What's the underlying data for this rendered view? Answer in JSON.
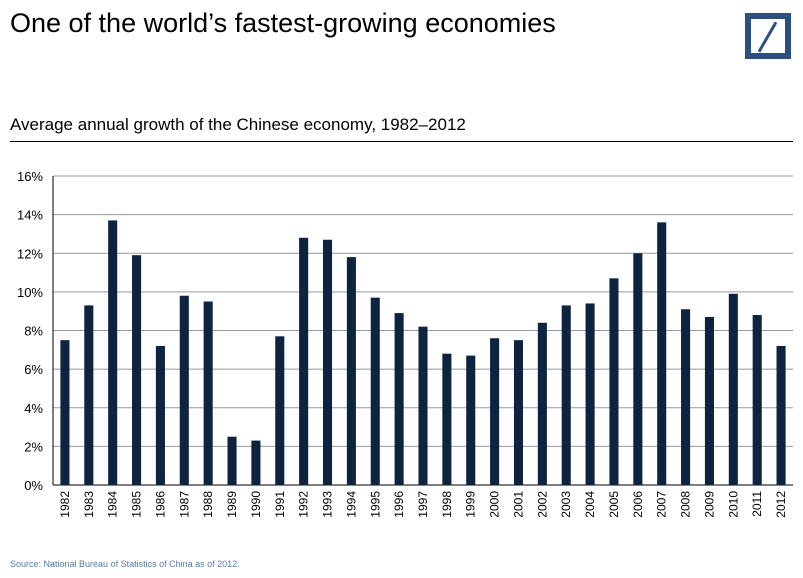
{
  "header": {
    "title": "One of the world’s fastest-growing economies",
    "logo_icon": "deutsche-bank-logo-icon",
    "logo_color": "#2b4f7e"
  },
  "source": "Source: National Bureau of Statistics of China as of 2012.",
  "chart_data": {
    "type": "bar",
    "title": "Average annual growth of the Chinese economy, 1982–2012",
    "xlabel": "",
    "ylabel": "",
    "ylim": [
      0,
      16
    ],
    "yticks": [
      "0%",
      "2%",
      "4%",
      "6%",
      "8%",
      "10%",
      "12%",
      "14%",
      "16%"
    ],
    "grid": "horizontal",
    "bar_color": "#0d2340",
    "categories": [
      "1982",
      "1983",
      "1984",
      "1985",
      "1986",
      "1987",
      "1988",
      "1989",
      "1990",
      "1991",
      "1992",
      "1993",
      "1994",
      "1995",
      "1996",
      "1997",
      "1998",
      "1999",
      "2000",
      "2001",
      "2002",
      "2003",
      "2004",
      "2005",
      "2006",
      "2007",
      "2008",
      "2009",
      "2010",
      "2011",
      "2012"
    ],
    "values": [
      7.5,
      9.3,
      13.7,
      11.9,
      7.2,
      9.8,
      9.5,
      2.5,
      2.3,
      7.7,
      12.8,
      12.7,
      11.8,
      9.7,
      8.9,
      8.2,
      6.8,
      6.7,
      7.6,
      7.5,
      8.4,
      9.3,
      9.4,
      10.7,
      12.0,
      13.6,
      9.1,
      8.7,
      9.9,
      8.8,
      7.2
    ]
  }
}
